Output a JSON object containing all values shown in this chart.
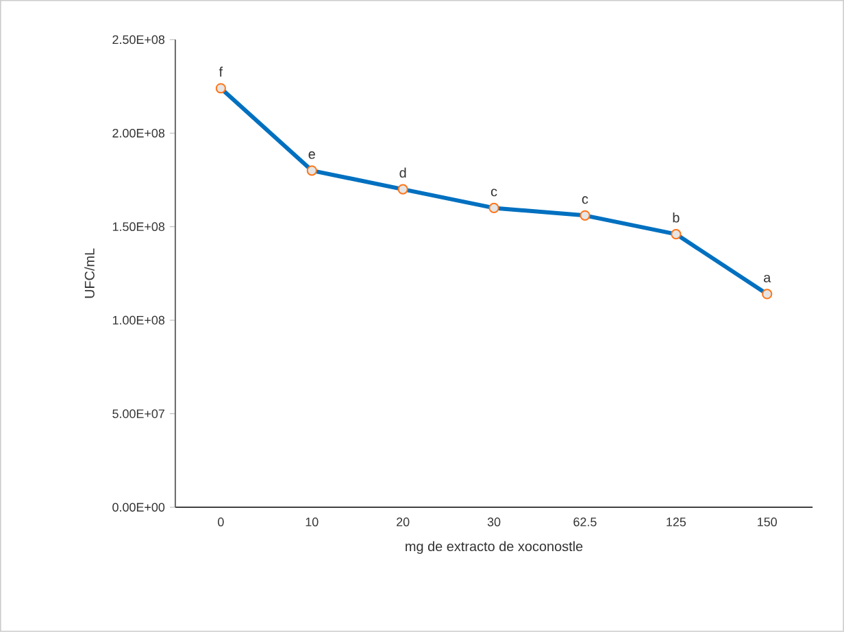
{
  "chart_data": {
    "type": "line",
    "xlabel": "mg de extracto de xoconostle",
    "ylabel": "UFC/mL",
    "categories": [
      "0",
      "10",
      "20",
      "30",
      "62.5",
      "125",
      "150"
    ],
    "series": [
      {
        "color": "#0070c0",
        "values": [
          224000000,
          180000000,
          170000000,
          160000000,
          156000000,
          146000000,
          114000000
        ]
      }
    ],
    "ylim": [
      0,
      250000000
    ],
    "yticks": [
      {
        "value": 0,
        "label": "0.00E+00"
      },
      {
        "value": 50000000,
        "label": "5.00E+07"
      },
      {
        "value": 100000000,
        "label": "1.00E+08"
      },
      {
        "value": 150000000,
        "label": "1.50E+08"
      },
      {
        "value": 200000000,
        "label": "2.00E+08"
      },
      {
        "value": 250000000,
        "label": "2.50E+08"
      }
    ],
    "marker": "circle",
    "annotations": [
      {
        "text": "f",
        "x": "0",
        "y": 224000000
      },
      {
        "text": "e",
        "x": "10",
        "y": 180000000
      },
      {
        "text": "d",
        "x": "20",
        "y": 170000000
      },
      {
        "text": "c",
        "x": "30",
        "y": 160000000
      },
      {
        "text": "c",
        "x": "62.5",
        "y": 156000000
      },
      {
        "text": "b",
        "x": "125",
        "y": 146000000
      },
      {
        "text": "a",
        "x": "150",
        "y": 114000000
      }
    ]
  }
}
